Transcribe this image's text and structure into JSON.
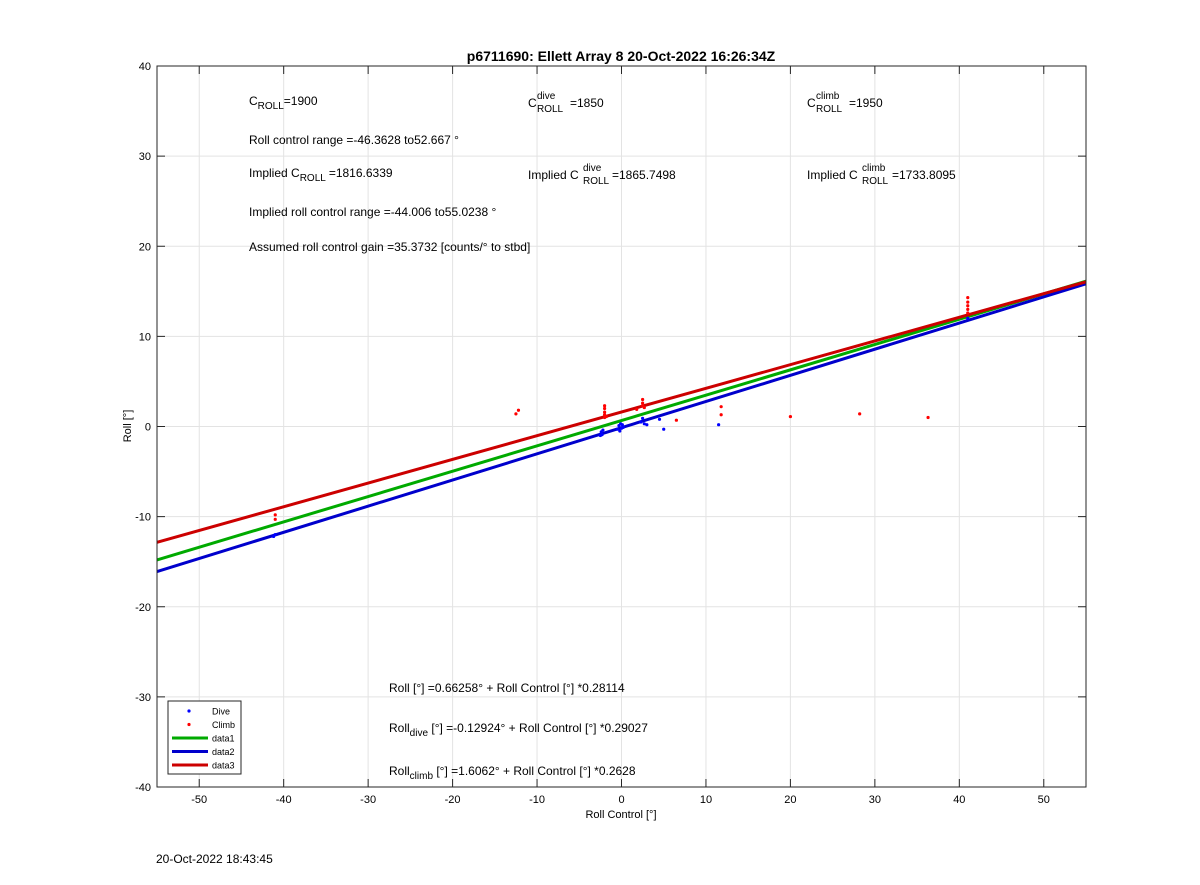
{
  "timestamp": "20-Oct-2022 18:43:45",
  "chart_data": {
    "type": "scatter",
    "title": "p6711690: Ellett Array 8 20-Oct-2022 16:26:34Z",
    "xlabel": "Roll Control [°]",
    "ylabel": "Roll [°]",
    "xlim": [
      -55,
      55
    ],
    "ylim": [
      -40,
      40
    ],
    "xticks": [
      -50,
      -40,
      -30,
      -20,
      -10,
      0,
      10,
      20,
      30,
      40,
      50
    ],
    "yticks": [
      -40,
      -30,
      -20,
      -10,
      0,
      10,
      20,
      30,
      40
    ],
    "grid": true,
    "legend_position": "bottom-left",
    "series": [
      {
        "name": "Dive",
        "kind": "points",
        "color": "#0000ff",
        "points": [
          [
            -41.2,
            -12.2
          ],
          [
            -41,
            -12.0
          ],
          [
            -2.5,
            -1.0
          ],
          [
            -2.4,
            -0.6
          ],
          [
            -2.3,
            -0.9
          ],
          [
            -2.2,
            -0.4
          ],
          [
            -0.5,
            -0.3
          ],
          [
            -0.3,
            0.1
          ],
          [
            -0.2,
            -0.5
          ],
          [
            -0.1,
            0.3
          ],
          [
            0,
            -0.2
          ],
          [
            0.1,
            0.2
          ],
          [
            0.2,
            -0.1
          ],
          [
            2.3,
            0.5
          ],
          [
            2.5,
            0.9
          ],
          [
            2.7,
            0.3
          ],
          [
            3,
            0.2
          ],
          [
            4.5,
            0.8
          ],
          [
            5,
            -0.3
          ],
          [
            11.5,
            0.2
          ],
          [
            41,
            12.0
          ]
        ]
      },
      {
        "name": "Climb",
        "kind": "points",
        "color": "#ff0000",
        "points": [
          [
            -41,
            -10.3
          ],
          [
            -41,
            -9.8
          ],
          [
            -12.5,
            1.4
          ],
          [
            -12.2,
            1.8
          ],
          [
            -2,
            1.0
          ],
          [
            -2,
            1.3
          ],
          [
            -2,
            1.6
          ],
          [
            -2,
            2.0
          ],
          [
            -2,
            2.3
          ],
          [
            -1.8,
            1.1
          ],
          [
            2.5,
            2.3
          ],
          [
            2.5,
            2.6
          ],
          [
            2.5,
            3.0
          ],
          [
            2.7,
            2.1
          ],
          [
            1.8,
            1.9
          ],
          [
            6.5,
            0.7
          ],
          [
            11.8,
            1.3
          ],
          [
            11.8,
            2.2
          ],
          [
            20,
            1.1
          ],
          [
            28.2,
            1.4
          ],
          [
            36.3,
            1.0
          ],
          [
            41,
            12.6
          ],
          [
            41,
            13.0
          ],
          [
            41,
            13.4
          ],
          [
            41,
            13.8
          ],
          [
            41,
            14.3
          ]
        ]
      },
      {
        "name": "data1",
        "kind": "line",
        "color": "#00aa00",
        "intercept": 0.66258,
        "slope": 0.28114
      },
      {
        "name": "data2",
        "kind": "line",
        "color": "#0000cc",
        "intercept": -0.12924,
        "slope": 0.29027
      },
      {
        "name": "data3",
        "kind": "line",
        "color": "#cc0000",
        "intercept": 1.6062,
        "slope": 0.2628
      }
    ],
    "annotations": {
      "c_roll": {
        "main": "C",
        "sub": "ROLL",
        "value": "=1900"
      },
      "c_roll_dive": {
        "main": "C",
        "sup": "dive",
        "sub": "ROLL",
        "value": "=1850"
      },
      "c_roll_climb": {
        "main": "C",
        "sup": "climb",
        "sub": "ROLL",
        "value": "=1950"
      },
      "roll_control_range": "Roll control range =-46.3628 to52.667 °",
      "implied_c_roll": {
        "prefix": "Implied C",
        "sub": "ROLL",
        "value": "=1816.6339"
      },
      "implied_c_roll_dive": {
        "prefix": "Implied C",
        "sup": "dive",
        "sub": "ROLL",
        "value": "=1865.7498"
      },
      "implied_c_roll_climb": {
        "prefix": "Implied C",
        "sup": "climb",
        "sub": "ROLL",
        "value": "=1733.8095"
      },
      "implied_range": "Implied roll control range =-44.006 to55.0238 °",
      "gain": "Assumed roll control gain =35.3732 [counts/° to stbd]",
      "fit_all": "Roll [°] =0.66258° + Roll Control [°] *0.28114",
      "fit_dive": {
        "prefix": "Roll",
        "sub": "dive",
        "rest": " [°] =-0.12924° + Roll Control [°] *0.29027"
      },
      "fit_climb": {
        "prefix": "Roll",
        "sub": "climb",
        "rest": " [°] =1.6062° + Roll Control [°] *0.2628"
      }
    }
  }
}
